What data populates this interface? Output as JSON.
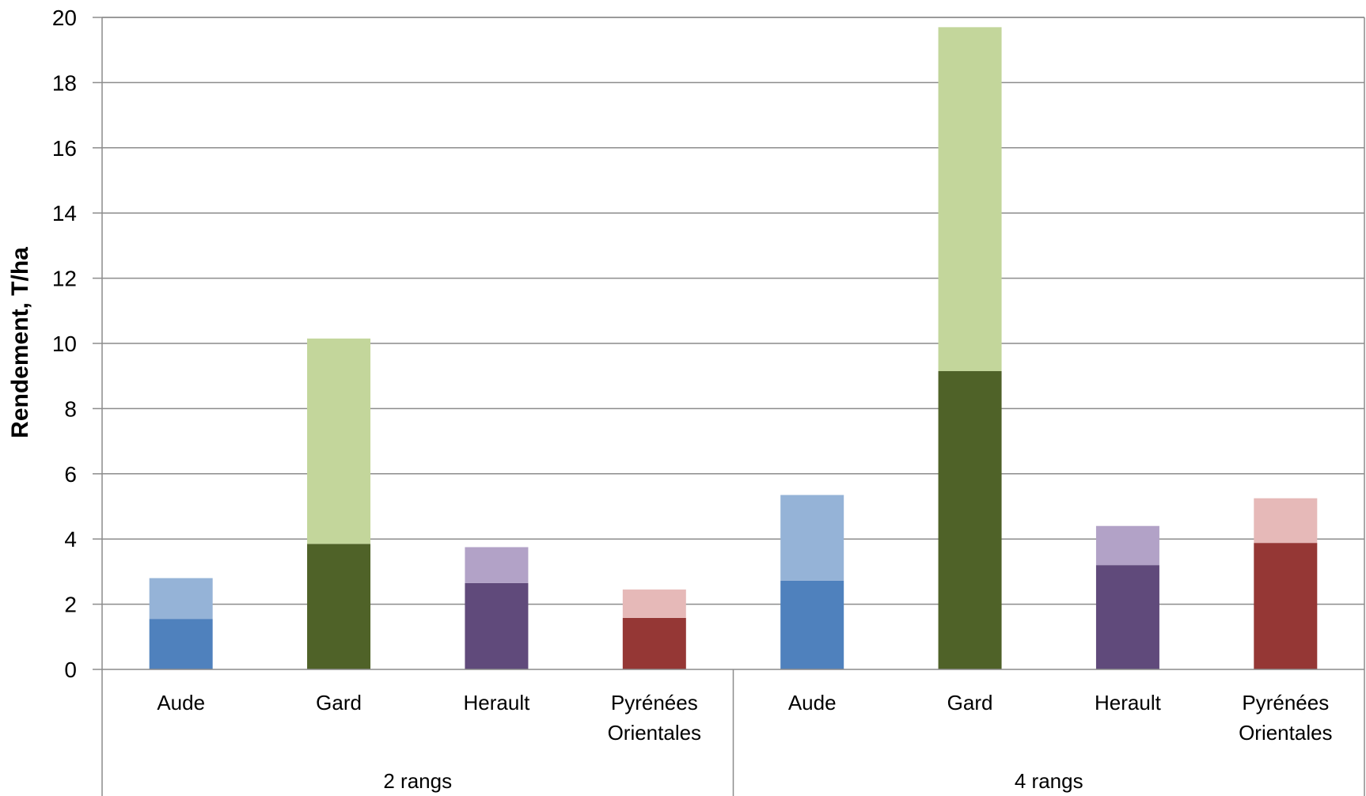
{
  "chart_data": {
    "type": "bar",
    "stacked": true,
    "ylabel": "Rendement, T/ha",
    "ylim": [
      0,
      20
    ],
    "yticks": [
      "0",
      "2",
      "4",
      "6",
      "8",
      "10",
      "12",
      "14",
      "16",
      "18",
      "20"
    ],
    "grid": true,
    "groups": [
      {
        "label": "2 rangs",
        "categories": [
          "Aude",
          "Gard",
          "Herault",
          "Pyrénées Orientales"
        ]
      },
      {
        "label": "4 rangs",
        "categories": [
          "Aude",
          "Gard",
          "Herault",
          "Pyrénées Orientales"
        ]
      }
    ],
    "bars": [
      {
        "category": "Aude",
        "category_lines": [
          "Aude"
        ],
        "group": "2 rangs",
        "lower": 1.55,
        "total": 2.8,
        "color_lower": "#4f81bd",
        "color_upper": "#95b3d7"
      },
      {
        "category": "Gard",
        "category_lines": [
          "Gard"
        ],
        "group": "2 rangs",
        "lower": 3.85,
        "total": 10.15,
        "color_lower": "#4f6228",
        "color_upper": "#c3d69b"
      },
      {
        "category": "Herault",
        "category_lines": [
          "Herault"
        ],
        "group": "2 rangs",
        "lower": 2.65,
        "total": 3.75,
        "color_lower": "#604a7b",
        "color_upper": "#b2a2c7"
      },
      {
        "category": "Pyrénées Orientales",
        "category_lines": [
          "Pyrénées",
          "Orientales"
        ],
        "group": "2 rangs",
        "lower": 1.58,
        "total": 2.45,
        "color_lower": "#953735",
        "color_upper": "#e6b9b8"
      },
      {
        "category": "Aude",
        "category_lines": [
          "Aude"
        ],
        "group": "4 rangs",
        "lower": 2.72,
        "total": 5.35,
        "color_lower": "#4f81bd",
        "color_upper": "#95b3d7"
      },
      {
        "category": "Gard",
        "category_lines": [
          "Gard"
        ],
        "group": "4 rangs",
        "lower": 9.15,
        "total": 19.7,
        "color_lower": "#4f6228",
        "color_upper": "#c3d69b"
      },
      {
        "category": "Herault",
        "category_lines": [
          "Herault"
        ],
        "group": "4 rangs",
        "lower": 3.2,
        "total": 4.4,
        "color_lower": "#604a7b",
        "color_upper": "#b2a2c7"
      },
      {
        "category": "Pyrénées Orientales",
        "category_lines": [
          "Pyrénées",
          "Orientales"
        ],
        "group": "4 rangs",
        "lower": 3.88,
        "total": 5.25,
        "color_lower": "#953735",
        "color_upper": "#e6b9b8"
      }
    ]
  }
}
